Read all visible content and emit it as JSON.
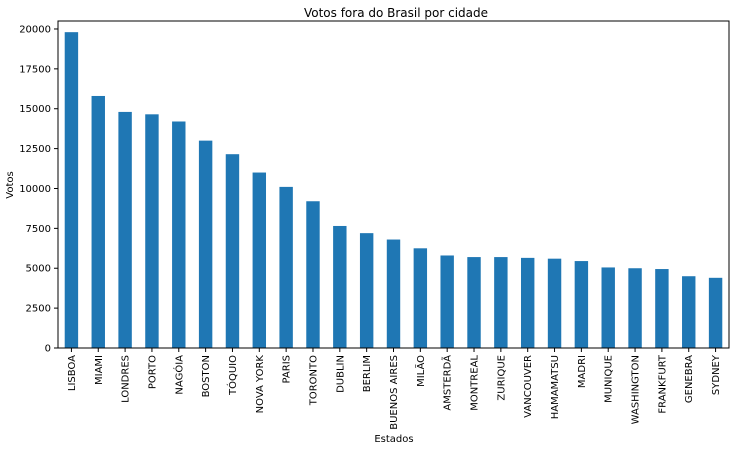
{
  "chart_data": {
    "type": "bar",
    "title": "Votos fora do Brasil por cidade",
    "xlabel": "Estados",
    "ylabel": "Votos",
    "ylim": [
      0,
      20500
    ],
    "yticks": [
      0,
      2500,
      5000,
      7500,
      10000,
      12500,
      15000,
      17500,
      20000
    ],
    "ytick_labels": [
      "0",
      "2500",
      "5000",
      "7500",
      "10000",
      "12500",
      "15000",
      "17500",
      "20000"
    ],
    "grid": false,
    "legend": "none",
    "bar_color": "#1f77b4",
    "categories": [
      "LISBOA",
      "MIAMI",
      "LONDRES",
      "PORTO",
      "NAGÓIA",
      "BOSTON",
      "TÓQUIO",
      "NOVA YORK",
      "PARIS",
      "TORONTO",
      "DUBLIN",
      "BERLIM",
      "BUENOS AIRES",
      "MILÃO",
      "AMSTERDÃ",
      "MONTREAL",
      "ZURIQUE",
      "VANCOUVER",
      "HAMAMATSU",
      "MADRI",
      "MUNIQUE",
      "WASHINGTON",
      "FRANKFURT",
      "GENEBRA",
      "SYDNEY"
    ],
    "values": [
      19800,
      15800,
      14800,
      14650,
      14200,
      13000,
      12150,
      11000,
      10100,
      9200,
      7650,
      7200,
      6800,
      6250,
      5800,
      5700,
      5700,
      5650,
      5600,
      5450,
      5050,
      5000,
      4950,
      4500,
      4400
    ]
  }
}
